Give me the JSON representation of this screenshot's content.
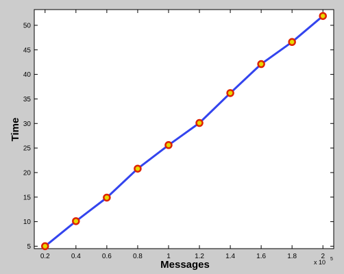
{
  "chart_data": {
    "type": "line",
    "x": [
      0.2,
      0.4,
      0.6,
      0.8,
      1.0,
      1.2,
      1.4,
      1.6,
      1.8,
      2.0
    ],
    "series": [
      {
        "values": [
          5,
          10.1,
          14.9,
          20.8,
          25.6,
          30.1,
          36.2,
          42.1,
          46.6,
          51.9
        ]
      }
    ],
    "xlabel": "Messages",
    "ylabel": "Time",
    "xlim": [
      0.13,
      2.07
    ],
    "ylim": [
      4.5,
      53.2
    ],
    "xticks": [
      "0.2",
      "0.4",
      "0.6",
      "0.8",
      "1",
      "1.2",
      "1.4",
      "1.6",
      "1.8",
      "2"
    ],
    "yticks": [
      "5",
      "10",
      "15",
      "20",
      "25",
      "30",
      "35",
      "40",
      "45",
      "50"
    ],
    "x_exponent": {
      "base": "x 10",
      "power": "5"
    },
    "grid": false,
    "colors": {
      "line": "#3344ee",
      "marker_edge": "#dd2200",
      "marker_face": "#e8d800",
      "plot_bg": "#ffffff",
      "figure_bg": "#cccccc"
    }
  }
}
